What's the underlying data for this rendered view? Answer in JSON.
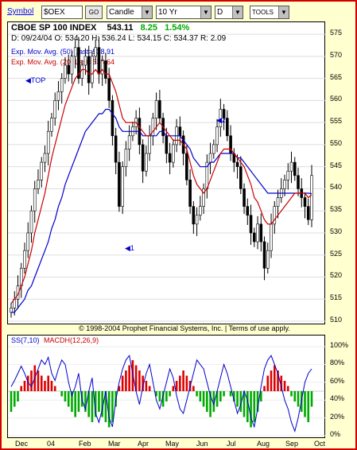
{
  "toolbar": {
    "symbol_label": "Symbol",
    "symbol_value": "$OEX",
    "go_label": "GO",
    "chart_type": "Candle",
    "period": "10 Yr",
    "interval": "D",
    "tools_label": "TOOLS"
  },
  "header": {
    "title": "CBOE SP 100 INDEX",
    "last": "543.11",
    "change": "8.25",
    "change_pct": "1.54%",
    "ohlc": "D: 09/24/04  O: 534.20  H: 536.24  L: 534.15  C: 534.37  R: 2.09"
  },
  "legend": {
    "ema50": "Exp. Mov. Avg. (50) Last=538.91",
    "ema20": "Exp. Mov. Avg. (20) Last=538.64"
  },
  "markers": {
    "top": "TOP",
    "one": "1",
    "two": "2"
  },
  "copyright": "© 1998-2004 Prophet Financial Systems, Inc. | Terms of use apply.",
  "indicator": {
    "label_ss": "SS(7,10)",
    "label_macd": "MACDH(12,26,9)",
    "y_ticks": [
      "100%",
      "80%",
      "60%",
      "40%",
      "20%",
      "0%"
    ]
  },
  "colors": {
    "up": "#00aa00",
    "down": "#dd0000",
    "ema50": "#0000cc",
    "ema20": "#cc0000",
    "frame": "#d40000"
  },
  "chart_data": {
    "type": "candlestick",
    "y_ticks": [
      575,
      570,
      565,
      560,
      555,
      550,
      545,
      540,
      535,
      530,
      525,
      520,
      515,
      510
    ],
    "ylim": [
      510,
      577
    ],
    "x_labels": [
      "Dec",
      "04",
      "Feb",
      "Mar",
      "Apr",
      "May",
      "Jun",
      "Jul",
      "Aug",
      "Sep",
      "Oct"
    ],
    "close": [
      513,
      515,
      518,
      522,
      526,
      530,
      535,
      540,
      542,
      546,
      548,
      553,
      556,
      560,
      562,
      565,
      568,
      566,
      570,
      572,
      565,
      568,
      570,
      564,
      570,
      572,
      566,
      569,
      565,
      560,
      552,
      546,
      536,
      545,
      549,
      552,
      554,
      556,
      550,
      544,
      548,
      552,
      556,
      560,
      556,
      552,
      548,
      546,
      550,
      554,
      552,
      548,
      542,
      536,
      532,
      534,
      536,
      540,
      546,
      548,
      550,
      554,
      558,
      556,
      552,
      548,
      546,
      545,
      540,
      536,
      534,
      530,
      528,
      532,
      528,
      522,
      526,
      532,
      536,
      538,
      540,
      542,
      544,
      546,
      543,
      540,
      538,
      536,
      533,
      543
    ],
    "ema20": [
      514,
      515,
      516,
      518,
      520,
      523,
      526,
      530,
      533,
      536,
      539,
      543,
      547,
      550,
      553,
      556,
      559,
      561,
      563,
      565,
      566,
      567,
      567,
      566,
      566,
      567,
      566,
      567,
      566,
      566,
      564,
      562,
      559,
      556,
      555,
      555,
      555,
      555,
      554,
      553,
      552,
      552,
      553,
      554,
      555,
      554,
      553,
      552,
      551,
      551,
      551,
      550,
      549,
      546,
      543,
      541,
      540,
      539,
      540,
      542,
      544,
      546,
      548,
      549,
      549,
      549,
      548,
      547,
      546,
      545,
      543,
      541,
      538,
      537,
      535,
      533,
      532,
      532,
      533,
      534,
      535,
      536,
      537,
      538,
      539,
      539,
      539,
      539,
      538,
      538.64
    ],
    "ema50": [
      512,
      512,
      513,
      514,
      515,
      517,
      518,
      520,
      522,
      524,
      526,
      528,
      531,
      533,
      536,
      538,
      541,
      543,
      545,
      547,
      549,
      551,
      553,
      554,
      555,
      556,
      557,
      557,
      558,
      558,
      557,
      556,
      554,
      553,
      553,
      553,
      553,
      553,
      553,
      552,
      552,
      552,
      552,
      552,
      553,
      553,
      552,
      552,
      552,
      552,
      552,
      551,
      550,
      549,
      547,
      546,
      545,
      545,
      545,
      546,
      546,
      547,
      548,
      548,
      548,
      548,
      548,
      547,
      547,
      546,
      545,
      544,
      543,
      542,
      541,
      540,
      539,
      539,
      539,
      539,
      539,
      539,
      539,
      539,
      539,
      539,
      539,
      539,
      539,
      538.91
    ],
    "ss": [
      55,
      62,
      70,
      78,
      70,
      60,
      55,
      65,
      75,
      85,
      80,
      88,
      70,
      62,
      75,
      85,
      80,
      60,
      45,
      55,
      70,
      40,
      30,
      50,
      65,
      25,
      15,
      30,
      50,
      20,
      10,
      40,
      60,
      75,
      85,
      90,
      70,
      50,
      35,
      55,
      70,
      80,
      60,
      40,
      30,
      45,
      60,
      75,
      65,
      45,
      30,
      25,
      40,
      55,
      70,
      85,
      80,
      75,
      60,
      45,
      35,
      50,
      65,
      80,
      70,
      55,
      40,
      25,
      35,
      50,
      40,
      20,
      10,
      30,
      55,
      75,
      85,
      90,
      80,
      70,
      55,
      40,
      30,
      15,
      5,
      20,
      40,
      60,
      70,
      75
    ],
    "macdh": [
      -4,
      -3,
      -2,
      1,
      2,
      3,
      4,
      5,
      4,
      3,
      2,
      3,
      2,
      1,
      0,
      -1,
      -2,
      -3,
      -4,
      -5,
      -4,
      -3,
      -4,
      -5,
      -6,
      -5,
      -4,
      -5,
      -6,
      -7,
      -6,
      -3,
      1,
      3,
      4,
      5,
      6,
      5,
      4,
      3,
      2,
      1,
      0,
      -1,
      -2,
      -3,
      -2,
      -1,
      1,
      2,
      3,
      4,
      3,
      2,
      1,
      -1,
      -2,
      -3,
      -4,
      -5,
      -4,
      -3,
      -2,
      -1,
      0,
      -1,
      -2,
      -3,
      -4,
      -5,
      -6,
      -7,
      -6,
      -4,
      -2,
      1,
      3,
      4,
      5,
      4,
      3,
      2,
      1,
      -1,
      -2,
      -3,
      -4,
      -5,
      -6,
      -3
    ]
  }
}
